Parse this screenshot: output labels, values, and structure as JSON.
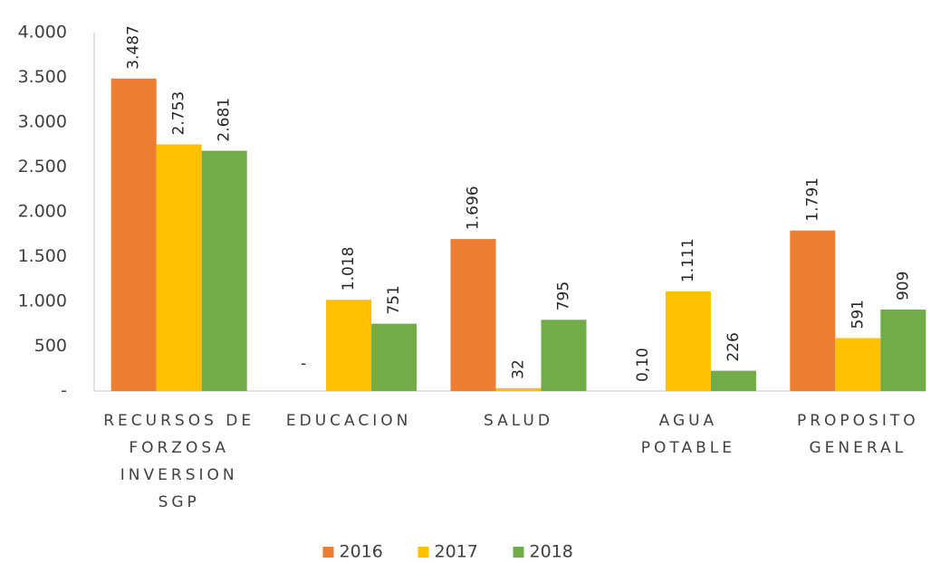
{
  "chart_data": {
    "type": "bar",
    "categories": [
      [
        "RECURSOS DE",
        "FORZOSA",
        "INVERSION",
        "SGP"
      ],
      [
        "EDUCACION"
      ],
      [
        "SALUD"
      ],
      [
        "AGUA",
        "POTABLE"
      ],
      [
        "PROPOSITO",
        "GENERAL"
      ]
    ],
    "series": [
      {
        "name": "2016",
        "color": "#ED7D31",
        "values": [
          3487,
          0,
          1696,
          0.1,
          1791
        ],
        "value_labels": [
          "3.487",
          "-",
          "1.696",
          "0,10",
          "1.791"
        ]
      },
      {
        "name": "2017",
        "color": "#FFC000",
        "values": [
          2753,
          1018,
          32,
          1111,
          591
        ],
        "value_labels": [
          "2.753",
          "1.018",
          "32",
          "1.111",
          "591"
        ]
      },
      {
        "name": "2018",
        "color": "#70AD47",
        "values": [
          2681,
          751,
          795,
          226,
          909
        ],
        "value_labels": [
          "2.681",
          "751",
          "795",
          "226",
          "909"
        ]
      }
    ],
    "ylim": [
      0,
      4000
    ],
    "yticks": [
      {
        "value": 0,
        "label": "-"
      },
      500,
      {
        "value": 1000,
        "label": "1.000"
      },
      {
        "value": 1500,
        "label": "1.500"
      },
      {
        "value": 2000,
        "label": "2.000"
      },
      {
        "value": 2500,
        "label": "2.500"
      },
      {
        "value": 3000,
        "label": "3.000"
      },
      {
        "value": 3500,
        "label": "3.500"
      },
      {
        "value": 4000,
        "label": "4.000"
      }
    ],
    "legend": "bottom",
    "grid": false
  }
}
